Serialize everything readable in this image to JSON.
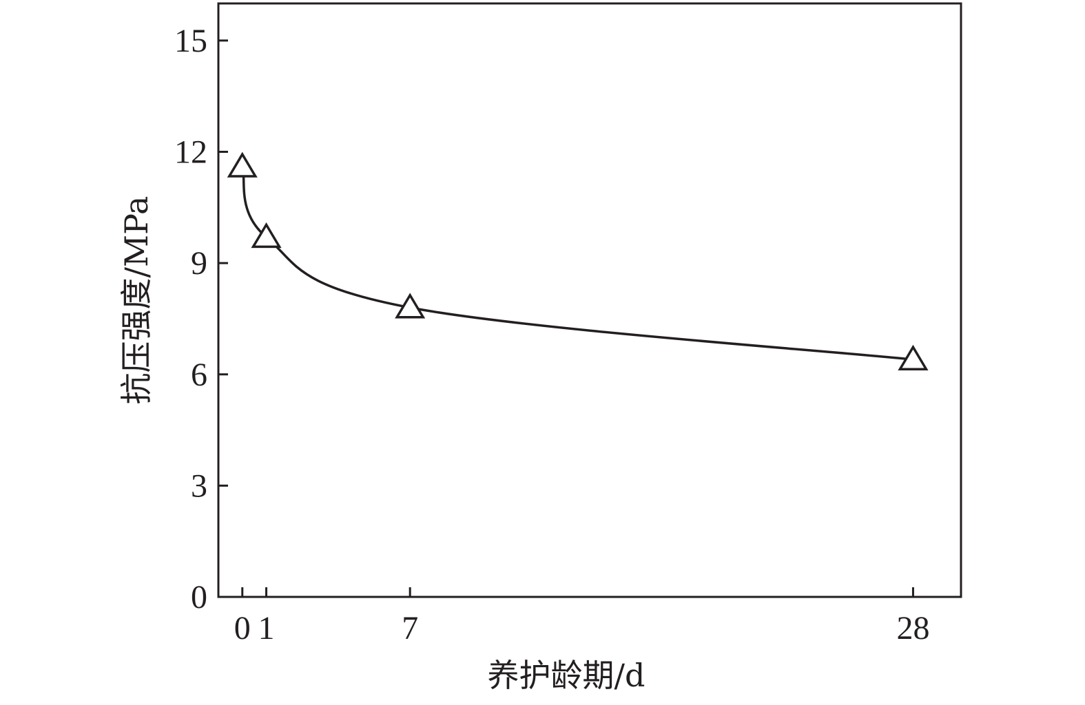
{
  "chart_data": {
    "type": "line",
    "title": "",
    "xlabel": "养护龄期/d",
    "ylabel": "抗压强度/MPa",
    "x_ticks": [
      0,
      1,
      7,
      28
    ],
    "y_ticks": [
      0,
      3,
      6,
      9,
      12,
      15
    ],
    "xlim": [
      -1,
      30
    ],
    "ylim": [
      0,
      16
    ],
    "grid": false,
    "series": [
      {
        "marker": "open-triangle",
        "x": [
          0,
          1,
          7,
          28
        ],
        "y": [
          11.6,
          9.7,
          7.8,
          6.4
        ]
      }
    ],
    "colors": {
      "line": "#231f20",
      "axis": "#231f20"
    }
  }
}
